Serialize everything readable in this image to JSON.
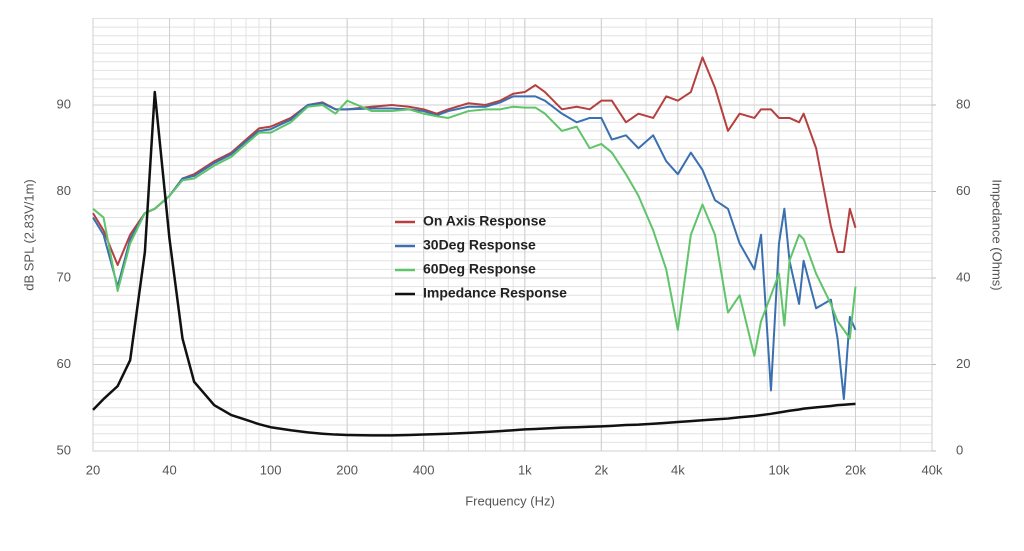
{
  "chart_data": {
    "type": "line",
    "xlabel": "Frequency (Hz)",
    "ylabel": "dB SPL (2.83V/1m)",
    "y2label": "Impedance (Ohms)",
    "xscale": "log",
    "grid": true,
    "minor_grid": true,
    "legend": "center",
    "xlim": [
      20,
      40000
    ],
    "xticks": [
      20,
      40,
      100,
      200,
      400,
      {
        "value": 1000,
        "label": "1k"
      },
      {
        "value": 2000,
        "label": "2k"
      },
      {
        "value": 4000,
        "label": "4k"
      },
      {
        "value": 10000,
        "label": "10k"
      },
      {
        "value": 20000,
        "label": "20k"
      },
      {
        "value": 40000,
        "label": "40k"
      }
    ],
    "ylim": [
      50,
      100
    ],
    "yticks": [
      50,
      60,
      70,
      80,
      90
    ],
    "y2lim": [
      0,
      100
    ],
    "y2ticks": [
      0,
      20,
      40,
      60,
      80
    ],
    "x": [
      20,
      22,
      25,
      28,
      32,
      35,
      40,
      45,
      50,
      60,
      70,
      80,
      90,
      100,
      120,
      140,
      160,
      180,
      200,
      250,
      300,
      350,
      400,
      450,
      500,
      600,
      700,
      800,
      900,
      1000,
      1100,
      1200,
      1400,
      1600,
      1800,
      2000,
      2200,
      2500,
      2800,
      3200,
      3600,
      4000,
      4500,
      5000,
      5600,
      6300,
      7000,
      8000,
      8500,
      9300,
      10000,
      10500,
      11000,
      12000,
      12500,
      14000,
      16000,
      17000,
      18000,
      19000,
      20000
    ],
    "series": [
      {
        "name": "On Axis Response",
        "color": "#b5403f",
        "values": [
          77.5,
          75.5,
          71.5,
          75,
          77.5,
          78,
          79.5,
          81.5,
          82,
          83.5,
          84.5,
          86,
          87.3,
          87.5,
          88.5,
          90,
          90.3,
          89.5,
          89.5,
          89.8,
          90,
          89.8,
          89.5,
          89,
          89.5,
          90.2,
          90,
          90.5,
          91.3,
          91.5,
          92.3,
          91.5,
          89.5,
          89.8,
          89.5,
          90.5,
          90.5,
          88,
          89,
          88.5,
          91,
          90.5,
          91.5,
          95.5,
          92,
          87,
          89,
          88.5,
          89.5,
          89.5,
          88.5,
          88.5,
          88.5,
          88,
          89,
          85,
          76,
          73,
          73,
          78,
          75.8
        ]
      },
      {
        "name": "30Deg Response",
        "color": "#3a6fb0",
        "values": [
          77,
          75,
          69,
          74.5,
          77.5,
          78,
          79.5,
          81.5,
          81.8,
          83.3,
          84.3,
          85.8,
          87,
          87.2,
          88.3,
          90,
          90.2,
          89.5,
          89.5,
          89.6,
          89.6,
          89.5,
          89.3,
          88.8,
          89.3,
          89.8,
          89.8,
          90.3,
          91,
          91,
          91,
          90.5,
          89,
          88,
          88.5,
          88.5,
          86,
          86.5,
          85,
          86.5,
          83.5,
          82,
          84.5,
          82.5,
          79,
          78,
          74,
          71,
          75,
          57,
          74,
          78,
          72,
          67,
          72,
          66.5,
          67.5,
          63,
          56,
          65.5,
          64
        ]
      },
      {
        "name": "60Deg Response",
        "color": "#5fc46a",
        "values": [
          78,
          77,
          68.5,
          74,
          77.5,
          78,
          79.5,
          81.3,
          81.5,
          83,
          84,
          85.5,
          86.8,
          86.8,
          88,
          89.8,
          90,
          89,
          90.5,
          89.3,
          89.3,
          89.5,
          89,
          88.7,
          88.5,
          89.3,
          89.5,
          89.5,
          89.8,
          89.7,
          89.7,
          89,
          87,
          87.5,
          85,
          85.5,
          84.5,
          82,
          79.5,
          75.5,
          71,
          64,
          75,
          78.5,
          75,
          66,
          68,
          61,
          65,
          68,
          70.5,
          64.5,
          72,
          75,
          74.5,
          70.5,
          67,
          65,
          64,
          63,
          69
        ]
      },
      {
        "name": "Impedance Response",
        "color": "#111111",
        "axis": "y2",
        "values": [
          9.5,
          12,
          15,
          21,
          46,
          83,
          49,
          26,
          16,
          10.6,
          8.3,
          7.2,
          6.2,
          5.5,
          4.8,
          4.3,
          4,
          3.8,
          3.7,
          3.6,
          3.6,
          3.7,
          3.8,
          3.9,
          4,
          4.2,
          4.4,
          4.6,
          4.8,
          5,
          5.1,
          5.2,
          5.4,
          5.5,
          5.6,
          5.7,
          5.8,
          6,
          6.1,
          6.3,
          6.5,
          6.7,
          6.9,
          7.1,
          7.3,
          7.5,
          7.8,
          8.1,
          8.3,
          8.6,
          8.9,
          9.1,
          9.3,
          9.6,
          9.8,
          10.1,
          10.4,
          10.6,
          10.7,
          10.8,
          10.9
        ]
      }
    ]
  }
}
